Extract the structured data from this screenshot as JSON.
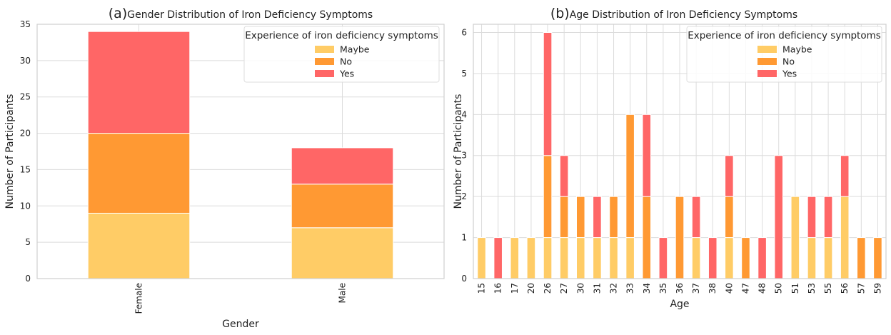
{
  "chart_data": [
    {
      "type": "bar",
      "stacked": true,
      "title_prefix": "(a)",
      "title": "Gender Distribution of Iron Deficiency Symptoms",
      "xlabel": "Gender",
      "ylabel": "Number of Participants",
      "categories": [
        "Female",
        "Male"
      ],
      "ylim": [
        0,
        35
      ],
      "yticks": [
        0,
        5,
        10,
        15,
        20,
        25,
        30,
        35
      ],
      "grid": true,
      "legend_position": "top-right",
      "legend_title": "Experience of iron deficiency symptoms",
      "series": [
        {
          "name": "Maybe",
          "color": "#ffcc66",
          "values": [
            9,
            7
          ]
        },
        {
          "name": "No",
          "color": "#ff9933",
          "values": [
            11,
            6
          ]
        },
        {
          "name": "Yes",
          "color": "#ff6666",
          "values": [
            14,
            5
          ]
        }
      ]
    },
    {
      "type": "bar",
      "stacked": true,
      "title_prefix": "(b)",
      "title": "Age Distribution of Iron Deficiency Symptoms",
      "xlabel": "Age",
      "ylabel": "Number of Participants",
      "categories": [
        "15",
        "16",
        "17",
        "20",
        "26",
        "27",
        "30",
        "31",
        "32",
        "33",
        "34",
        "35",
        "36",
        "37",
        "38",
        "40",
        "47",
        "48",
        "50",
        "51",
        "53",
        "55",
        "56",
        "57",
        "59"
      ],
      "ylim": [
        0,
        6.2
      ],
      "yticks": [
        0,
        1,
        2,
        3,
        4,
        5,
        6
      ],
      "grid": true,
      "legend_position": "top-right",
      "legend_title": "Experience of iron deficiency symptoms",
      "series": [
        {
          "name": "Maybe",
          "color": "#ffcc66",
          "values": [
            1,
            0,
            1,
            1,
            1,
            1,
            1,
            1,
            1,
            1,
            0,
            0,
            0,
            1,
            0,
            1,
            0,
            0,
            0,
            2,
            1,
            1,
            2,
            0,
            0
          ]
        },
        {
          "name": "No",
          "color": "#ff9933",
          "values": [
            0,
            0,
            0,
            0,
            2,
            1,
            1,
            0,
            1,
            3,
            2,
            0,
            2,
            0,
            0,
            1,
            1,
            0,
            0,
            0,
            0,
            0,
            0,
            1,
            1
          ]
        },
        {
          "name": "Yes",
          "color": "#ff6666",
          "values": [
            0,
            1,
            0,
            0,
            3,
            1,
            0,
            1,
            0,
            0,
            2,
            1,
            0,
            1,
            1,
            1,
            0,
            1,
            3,
            0,
            1,
            1,
            1,
            0,
            0
          ]
        }
      ]
    }
  ]
}
